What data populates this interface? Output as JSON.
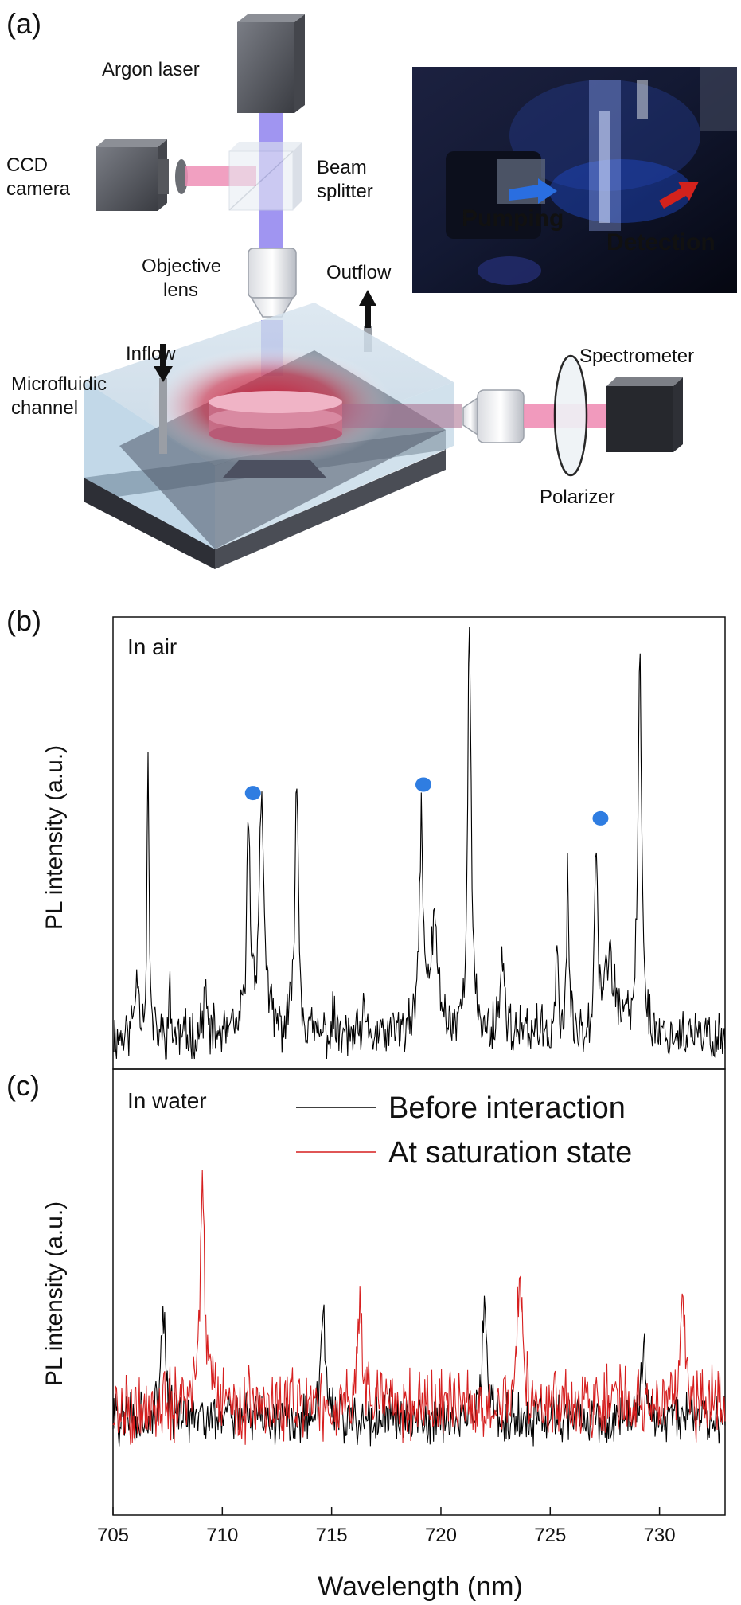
{
  "panel_labels": {
    "a": "(a)",
    "b": "(b)",
    "c": "(c)"
  },
  "setup": {
    "argon_laser": "Argon laser",
    "ccd_camera_line1": "CCD",
    "ccd_camera_line2": "camera",
    "beam_splitter_line1": "Beam",
    "beam_splitter_line2": "splitter",
    "objective_line1": "Objective",
    "objective_line2": "lens",
    "outflow": "Outflow",
    "inflow": "Inflow",
    "microfluidic_line1": "Microfluidic",
    "microfluidic_line2": "channel",
    "spectrometer": "Spectrometer",
    "polarizer": "Polarizer",
    "photo_pumping": "Pumping",
    "photo_detection": "Detection",
    "colors": {
      "pump_beam": "#8f82ee",
      "signal_beam": "#ef8fb6",
      "photo_pump_text": "#3fa3ff",
      "photo_detect_text": "#e0221c",
      "glow": "#c8122e"
    }
  },
  "chart_data": [
    {
      "type": "line",
      "panel": "(b)",
      "annotation": "In air",
      "xlabel": "",
      "ylabel": "PL intensity (a.u.)",
      "xlim": [
        705,
        733
      ],
      "ylim": [
        0,
        1
      ],
      "y_ticks_shown": false,
      "series": [
        {
          "color": "#000000",
          "peaks": [
            [
              706.1,
              0.2,
              0.12
            ],
            [
              706.6,
              0.75,
              0.05
            ],
            [
              707.6,
              0.15,
              0.05
            ],
            [
              709.2,
              0.16,
              0.09
            ],
            [
              711.2,
              0.54,
              0.1
            ],
            [
              711.8,
              0.58,
              0.15
            ],
            [
              713.4,
              0.67,
              0.1
            ],
            [
              715.1,
              0.11,
              0.05
            ],
            [
              716.5,
              0.1,
              0.06
            ],
            [
              718.0,
              0.08,
              0.06
            ],
            [
              719.1,
              0.55,
              0.1
            ],
            [
              719.7,
              0.3,
              0.22
            ],
            [
              721.3,
              0.99,
              0.1
            ],
            [
              722.8,
              0.22,
              0.15
            ],
            [
              724.3,
              0.1,
              0.06
            ],
            [
              725.3,
              0.3,
              0.06
            ],
            [
              725.8,
              0.48,
              0.05
            ],
            [
              727.1,
              0.5,
              0.08
            ],
            [
              727.7,
              0.22,
              0.35
            ],
            [
              729.1,
              0.95,
              0.1
            ]
          ],
          "baseline": 0.05,
          "noise": 0.05
        }
      ],
      "markers": [
        {
          "x": 711.4,
          "y": 0.63,
          "color": "#2f7de1"
        },
        {
          "x": 719.2,
          "y": 0.65,
          "color": "#2f7de1"
        },
        {
          "x": 727.3,
          "y": 0.57,
          "color": "#2f7de1"
        }
      ]
    },
    {
      "type": "line",
      "panel": "(c)",
      "annotation": "In water",
      "xlabel": "Wavelength (nm)",
      "ylabel": "PL intensity (a.u.)",
      "xlim": [
        705,
        733
      ],
      "ylim": [
        0,
        1
      ],
      "x_ticks": [
        705,
        710,
        715,
        720,
        725,
        730
      ],
      "y_ticks_shown": false,
      "legend_position": "top-right",
      "series": [
        {
          "name": "Before interaction",
          "color": "#000000",
          "peaks": [
            [
              707.3,
              0.48,
              0.12
            ],
            [
              714.6,
              0.48,
              0.12
            ],
            [
              722.0,
              0.52,
              0.12
            ],
            [
              729.3,
              0.41,
              0.12
            ]
          ],
          "baseline": 0.22,
          "noise": 0.05
        },
        {
          "name": "At saturation state",
          "color": "#d61f1f",
          "peaks": [
            [
              709.1,
              0.77,
              0.12
            ],
            [
              716.3,
              0.5,
              0.12
            ],
            [
              723.6,
              0.62,
              0.12
            ],
            [
              731.1,
              0.48,
              0.12
            ]
          ],
          "baseline": 0.25,
          "noise": 0.07
        }
      ]
    }
  ]
}
